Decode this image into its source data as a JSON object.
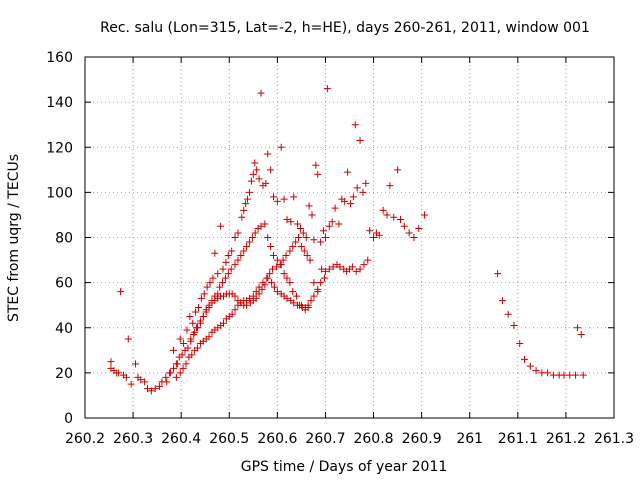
{
  "chart_data": {
    "type": "scatter",
    "title": "Rec. salu (Lon=315, Lat=-2, h=HE), days 260-261, 2011, window 001",
    "xlabel": "GPS time / Days of year 2011",
    "ylabel": "STEC from uqrg / TECUs",
    "xlim": [
      260.2,
      261.3
    ],
    "ylim": [
      0,
      160
    ],
    "xticks": [
      260.2,
      260.3,
      260.4,
      260.5,
      260.6,
      260.7,
      260.8,
      260.9,
      261,
      261.1,
      261.2,
      261.3
    ],
    "xtick_labels": [
      "260.2",
      "260.3",
      "260.4",
      "260.5",
      "260.6",
      "260.7",
      "260.8",
      "260.9",
      "261",
      "261.1",
      "261.2",
      "261.3"
    ],
    "yticks": [
      0,
      20,
      40,
      60,
      80,
      100,
      120,
      140,
      160
    ],
    "ytick_labels": [
      "0",
      "20",
      "40",
      "60",
      "80",
      "100",
      "120",
      "140",
      "160"
    ],
    "grid": true,
    "marker": "plus",
    "color": "#cc0000",
    "series": [
      {
        "points": [
          [
            260.254,
            25
          ],
          [
            260.254,
            22
          ],
          [
            260.26,
            21
          ],
          [
            260.266,
            20
          ],
          [
            260.27,
            20
          ],
          [
            260.274,
            56
          ],
          [
            260.28,
            19
          ],
          [
            260.286,
            18
          ],
          [
            260.29,
            35
          ],
          [
            260.296,
            15
          ],
          [
            260.305,
            24
          ],
          [
            260.31,
            18
          ],
          [
            260.316,
            17
          ],
          [
            260.324,
            16
          ],
          [
            260.33,
            13
          ],
          [
            260.338,
            12
          ],
          [
            260.346,
            13
          ],
          [
            260.355,
            14
          ],
          [
            260.36,
            16
          ],
          [
            260.368,
            18
          ],
          [
            260.376,
            20
          ],
          [
            260.384,
            30
          ],
          [
            260.392,
            24
          ],
          [
            260.398,
            35
          ],
          [
            260.405,
            33
          ],
          [
            260.412,
            39
          ],
          [
            260.418,
            45
          ],
          [
            260.424,
            42
          ],
          [
            260.43,
            47
          ],
          [
            260.436,
            49
          ],
          [
            260.442,
            53
          ],
          [
            260.448,
            55
          ],
          [
            260.454,
            58
          ],
          [
            260.46,
            60
          ],
          [
            260.466,
            62
          ],
          [
            260.47,
            73
          ],
          [
            260.476,
            64
          ],
          [
            260.482,
            85
          ],
          [
            260.487,
            66
          ],
          [
            260.493,
            69
          ],
          [
            260.498,
            72
          ],
          [
            260.505,
            74
          ],
          [
            260.512,
            80
          ],
          [
            260.518,
            82
          ],
          [
            260.526,
            89
          ],
          [
            260.53,
            92
          ],
          [
            260.534,
            95
          ],
          [
            260.538,
            97
          ],
          [
            260.542,
            100
          ],
          [
            260.546,
            105
          ],
          [
            260.55,
            108
          ],
          [
            260.553,
            113
          ],
          [
            260.557,
            110
          ],
          [
            260.562,
            106
          ],
          [
            260.566,
            144
          ],
          [
            260.57,
            103
          ],
          [
            260.576,
            104
          ],
          [
            260.58,
            117
          ],
          [
            260.586,
            110
          ],
          [
            260.592,
            98
          ],
          [
            260.6,
            96
          ],
          [
            260.608,
            120
          ],
          [
            260.614,
            97
          ],
          [
            260.62,
            88
          ],
          [
            260.628,
            87
          ],
          [
            260.634,
            98
          ],
          [
            260.642,
            86
          ],
          [
            260.648,
            84
          ],
          [
            260.654,
            82
          ],
          [
            260.66,
            80
          ],
          [
            260.666,
            94
          ],
          [
            260.672,
            90
          ],
          [
            260.676,
            79
          ],
          [
            260.68,
            112
          ],
          [
            260.684,
            108
          ],
          [
            260.69,
            78
          ],
          [
            260.696,
            83
          ],
          [
            260.7,
            80
          ],
          [
            260.704,
            146
          ],
          [
            260.708,
            85
          ],
          [
            260.714,
            87
          ],
          [
            260.72,
            93
          ],
          [
            260.728,
            86
          ],
          [
            260.734,
            97
          ],
          [
            260.74,
            96
          ],
          [
            260.746,
            109
          ],
          [
            260.752,
            95
          ],
          [
            260.758,
            98
          ],
          [
            260.762,
            130
          ],
          [
            260.766,
            102
          ],
          [
            260.772,
            123
          ],
          [
            260.778,
            100
          ],
          [
            260.784,
            104
          ],
          [
            260.792,
            83
          ],
          [
            260.8,
            80
          ],
          [
            260.806,
            82
          ],
          [
            260.812,
            81
          ],
          [
            260.82,
            92
          ],
          [
            260.828,
            90
          ],
          [
            260.834,
            103
          ],
          [
            260.842,
            89
          ],
          [
            260.85,
            110
          ],
          [
            260.856,
            88
          ],
          [
            260.864,
            85
          ],
          [
            260.874,
            82
          ],
          [
            260.884,
            80
          ],
          [
            260.894,
            84
          ],
          [
            260.906,
            90
          ],
          [
            260.37,
            16
          ],
          [
            260.378,
            20
          ],
          [
            260.384,
            22
          ],
          [
            260.39,
            24
          ],
          [
            260.396,
            27
          ],
          [
            260.402,
            28
          ],
          [
            260.408,
            30
          ],
          [
            260.414,
            31
          ],
          [
            260.42,
            34
          ],
          [
            260.426,
            37
          ],
          [
            260.432,
            40
          ],
          [
            260.44,
            42
          ],
          [
            260.446,
            45
          ],
          [
            260.452,
            48
          ],
          [
            260.458,
            50
          ],
          [
            260.464,
            52
          ],
          [
            260.47,
            54
          ],
          [
            260.476,
            55
          ],
          [
            260.48,
            58
          ],
          [
            260.486,
            60
          ],
          [
            260.492,
            62
          ],
          [
            260.498,
            64
          ],
          [
            260.504,
            66
          ],
          [
            260.512,
            68
          ],
          [
            260.518,
            70
          ],
          [
            260.524,
            72
          ],
          [
            260.53,
            74
          ],
          [
            260.536,
            76
          ],
          [
            260.542,
            78
          ],
          [
            260.548,
            80
          ],
          [
            260.554,
            82
          ],
          [
            260.56,
            84
          ],
          [
            260.566,
            85
          ],
          [
            260.574,
            86
          ],
          [
            260.58,
            80
          ],
          [
            260.586,
            76
          ],
          [
            260.592,
            72
          ],
          [
            260.6,
            70
          ],
          [
            260.608,
            68
          ],
          [
            260.614,
            64
          ],
          [
            260.62,
            62
          ],
          [
            260.626,
            60
          ],
          [
            260.632,
            56
          ],
          [
            260.64,
            54
          ],
          [
            260.646,
            50
          ],
          [
            260.652,
            49
          ],
          [
            260.658,
            48
          ],
          [
            260.664,
            50
          ],
          [
            260.67,
            52
          ],
          [
            260.676,
            54
          ],
          [
            260.684,
            56
          ],
          [
            260.692,
            66
          ],
          [
            260.7,
            65
          ],
          [
            260.708,
            66
          ],
          [
            260.716,
            67
          ],
          [
            260.724,
            68
          ],
          [
            260.73,
            67
          ],
          [
            260.738,
            66
          ],
          [
            260.744,
            65
          ],
          [
            260.75,
            66
          ],
          [
            260.756,
            67
          ],
          [
            260.764,
            65
          ],
          [
            260.772,
            66
          ],
          [
            260.78,
            68
          ],
          [
            260.788,
            70
          ],
          [
            260.39,
            18
          ],
          [
            260.398,
            20
          ],
          [
            260.404,
            22
          ],
          [
            260.41,
            24
          ],
          [
            260.416,
            27
          ],
          [
            260.422,
            28
          ],
          [
            260.428,
            30
          ],
          [
            260.434,
            31
          ],
          [
            260.44,
            33
          ],
          [
            260.446,
            34
          ],
          [
            260.452,
            35
          ],
          [
            260.458,
            36
          ],
          [
            260.464,
            38
          ],
          [
            260.47,
            39
          ],
          [
            260.476,
            40
          ],
          [
            260.482,
            41
          ],
          [
            260.488,
            42
          ],
          [
            260.494,
            44
          ],
          [
            260.5,
            45
          ],
          [
            260.506,
            46
          ],
          [
            260.512,
            48
          ],
          [
            260.518,
            50
          ],
          [
            260.524,
            51
          ],
          [
            260.53,
            52
          ],
          [
            260.536,
            52
          ],
          [
            260.542,
            53
          ],
          [
            260.55,
            54
          ],
          [
            260.556,
            56
          ],
          [
            260.562,
            58
          ],
          [
            260.57,
            60
          ],
          [
            260.578,
            62
          ],
          [
            260.584,
            64
          ],
          [
            260.59,
            66
          ],
          [
            260.598,
            67
          ],
          [
            260.606,
            68
          ],
          [
            260.612,
            70
          ],
          [
            260.618,
            72
          ],
          [
            260.626,
            74
          ],
          [
            260.632,
            76
          ],
          [
            260.638,
            78
          ],
          [
            260.644,
            80
          ],
          [
            260.65,
            76
          ],
          [
            260.656,
            74
          ],
          [
            260.662,
            72
          ],
          [
            260.668,
            70
          ],
          [
            260.676,
            60
          ],
          [
            260.684,
            57
          ],
          [
            260.69,
            60
          ],
          [
            260.698,
            62
          ],
          [
            260.42,
            35
          ],
          [
            260.428,
            38
          ],
          [
            260.434,
            40
          ],
          [
            260.44,
            43
          ],
          [
            260.446,
            45
          ],
          [
            260.452,
            47
          ],
          [
            260.458,
            49
          ],
          [
            260.464,
            51
          ],
          [
            260.47,
            52
          ],
          [
            260.476,
            53
          ],
          [
            260.482,
            54
          ],
          [
            260.488,
            54
          ],
          [
            260.494,
            55
          ],
          [
            260.5,
            55
          ],
          [
            260.506,
            55
          ],
          [
            260.512,
            54
          ],
          [
            260.518,
            52
          ],
          [
            260.524,
            51
          ],
          [
            260.53,
            50
          ],
          [
            260.536,
            50
          ],
          [
            260.544,
            51
          ],
          [
            260.55,
            52
          ],
          [
            260.556,
            53
          ],
          [
            260.562,
            55
          ],
          [
            260.568,
            57
          ],
          [
            260.574,
            59
          ],
          [
            260.58,
            62
          ],
          [
            260.588,
            60
          ],
          [
            260.594,
            58
          ],
          [
            260.6,
            56
          ],
          [
            260.608,
            55
          ],
          [
            260.614,
            54
          ],
          [
            260.62,
            53
          ],
          [
            260.628,
            52
          ],
          [
            260.634,
            51
          ],
          [
            260.642,
            50
          ],
          [
            260.65,
            50
          ],
          [
            260.658,
            49
          ],
          [
            260.664,
            49
          ],
          [
            261.058,
            64
          ],
          [
            261.068,
            52
          ],
          [
            261.08,
            46
          ],
          [
            261.092,
            41
          ],
          [
            261.104,
            33
          ],
          [
            261.114,
            26
          ],
          [
            261.126,
            23
          ],
          [
            261.138,
            21
          ],
          [
            261.15,
            20
          ],
          [
            261.162,
            20
          ],
          [
            261.174,
            19
          ],
          [
            261.186,
            19
          ],
          [
            261.196,
            19
          ],
          [
            261.208,
            19
          ],
          [
            261.22,
            19
          ],
          [
            261.224,
            40
          ],
          [
            261.232,
            37
          ],
          [
            261.236,
            19
          ]
        ]
      }
    ]
  }
}
